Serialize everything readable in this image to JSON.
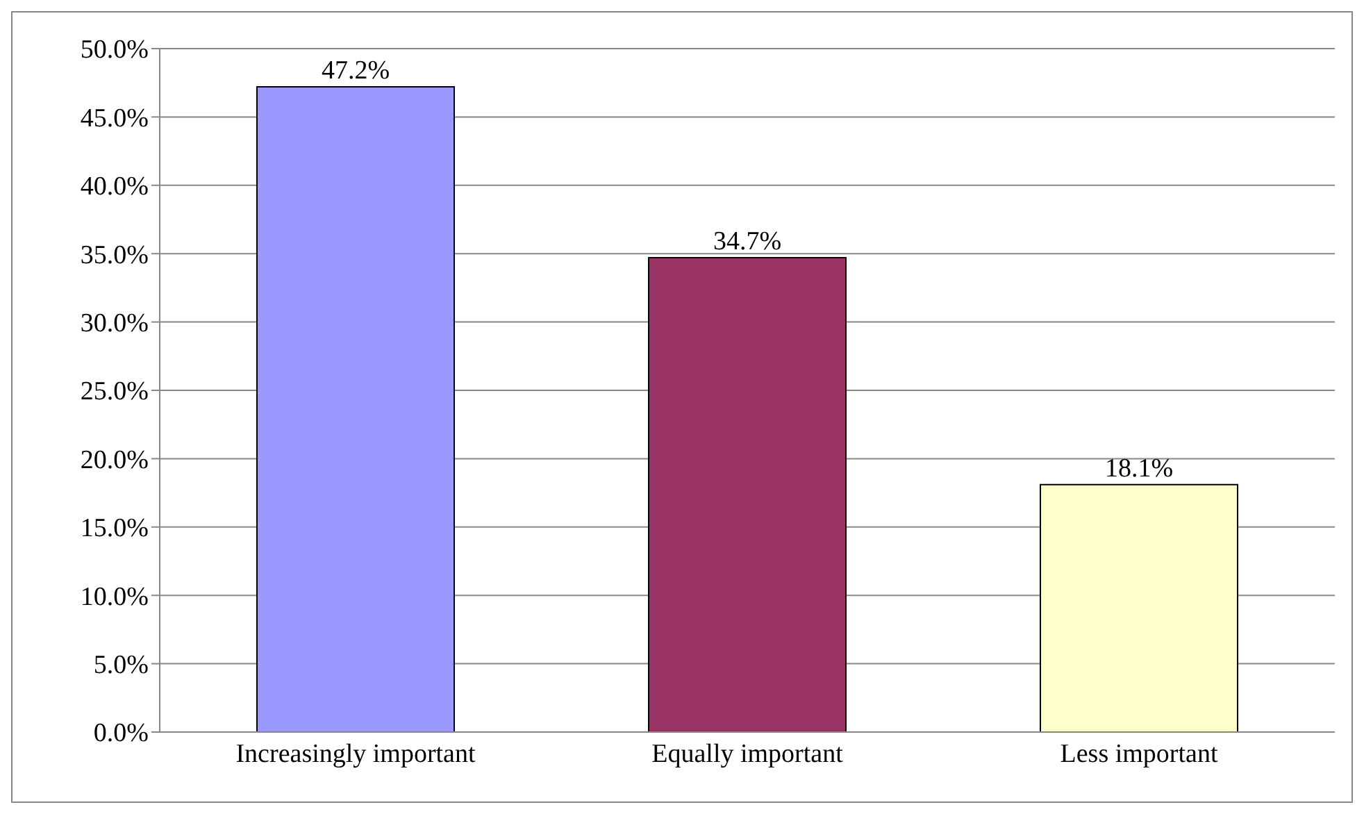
{
  "chart_data": {
    "type": "bar",
    "categories": [
      "Increasingly important",
      "Equally important",
      "Less important"
    ],
    "values": [
      47.2,
      34.7,
      18.1
    ],
    "colors": [
      "#9999ff",
      "#993366",
      "#ffffcc"
    ],
    "value_labels": [
      "47.2%",
      "34.7%",
      "18.1%"
    ],
    "ylim": [
      0,
      50
    ],
    "yticks": [
      {
        "value": 0,
        "label": "0.0%"
      },
      {
        "value": 5,
        "label": "5.0%"
      },
      {
        "value": 10,
        "label": "10.0%"
      },
      {
        "value": 15,
        "label": "15.0%"
      },
      {
        "value": 20,
        "label": "20.0%"
      },
      {
        "value": 25,
        "label": "25.0%"
      },
      {
        "value": 30,
        "label": "30.0%"
      },
      {
        "value": 35,
        "label": "35.0%"
      },
      {
        "value": 40,
        "label": "40.0%"
      },
      {
        "value": 45,
        "label": "45.0%"
      },
      {
        "value": 50,
        "label": "50.0%"
      }
    ],
    "grid": "y",
    "legend": false
  }
}
